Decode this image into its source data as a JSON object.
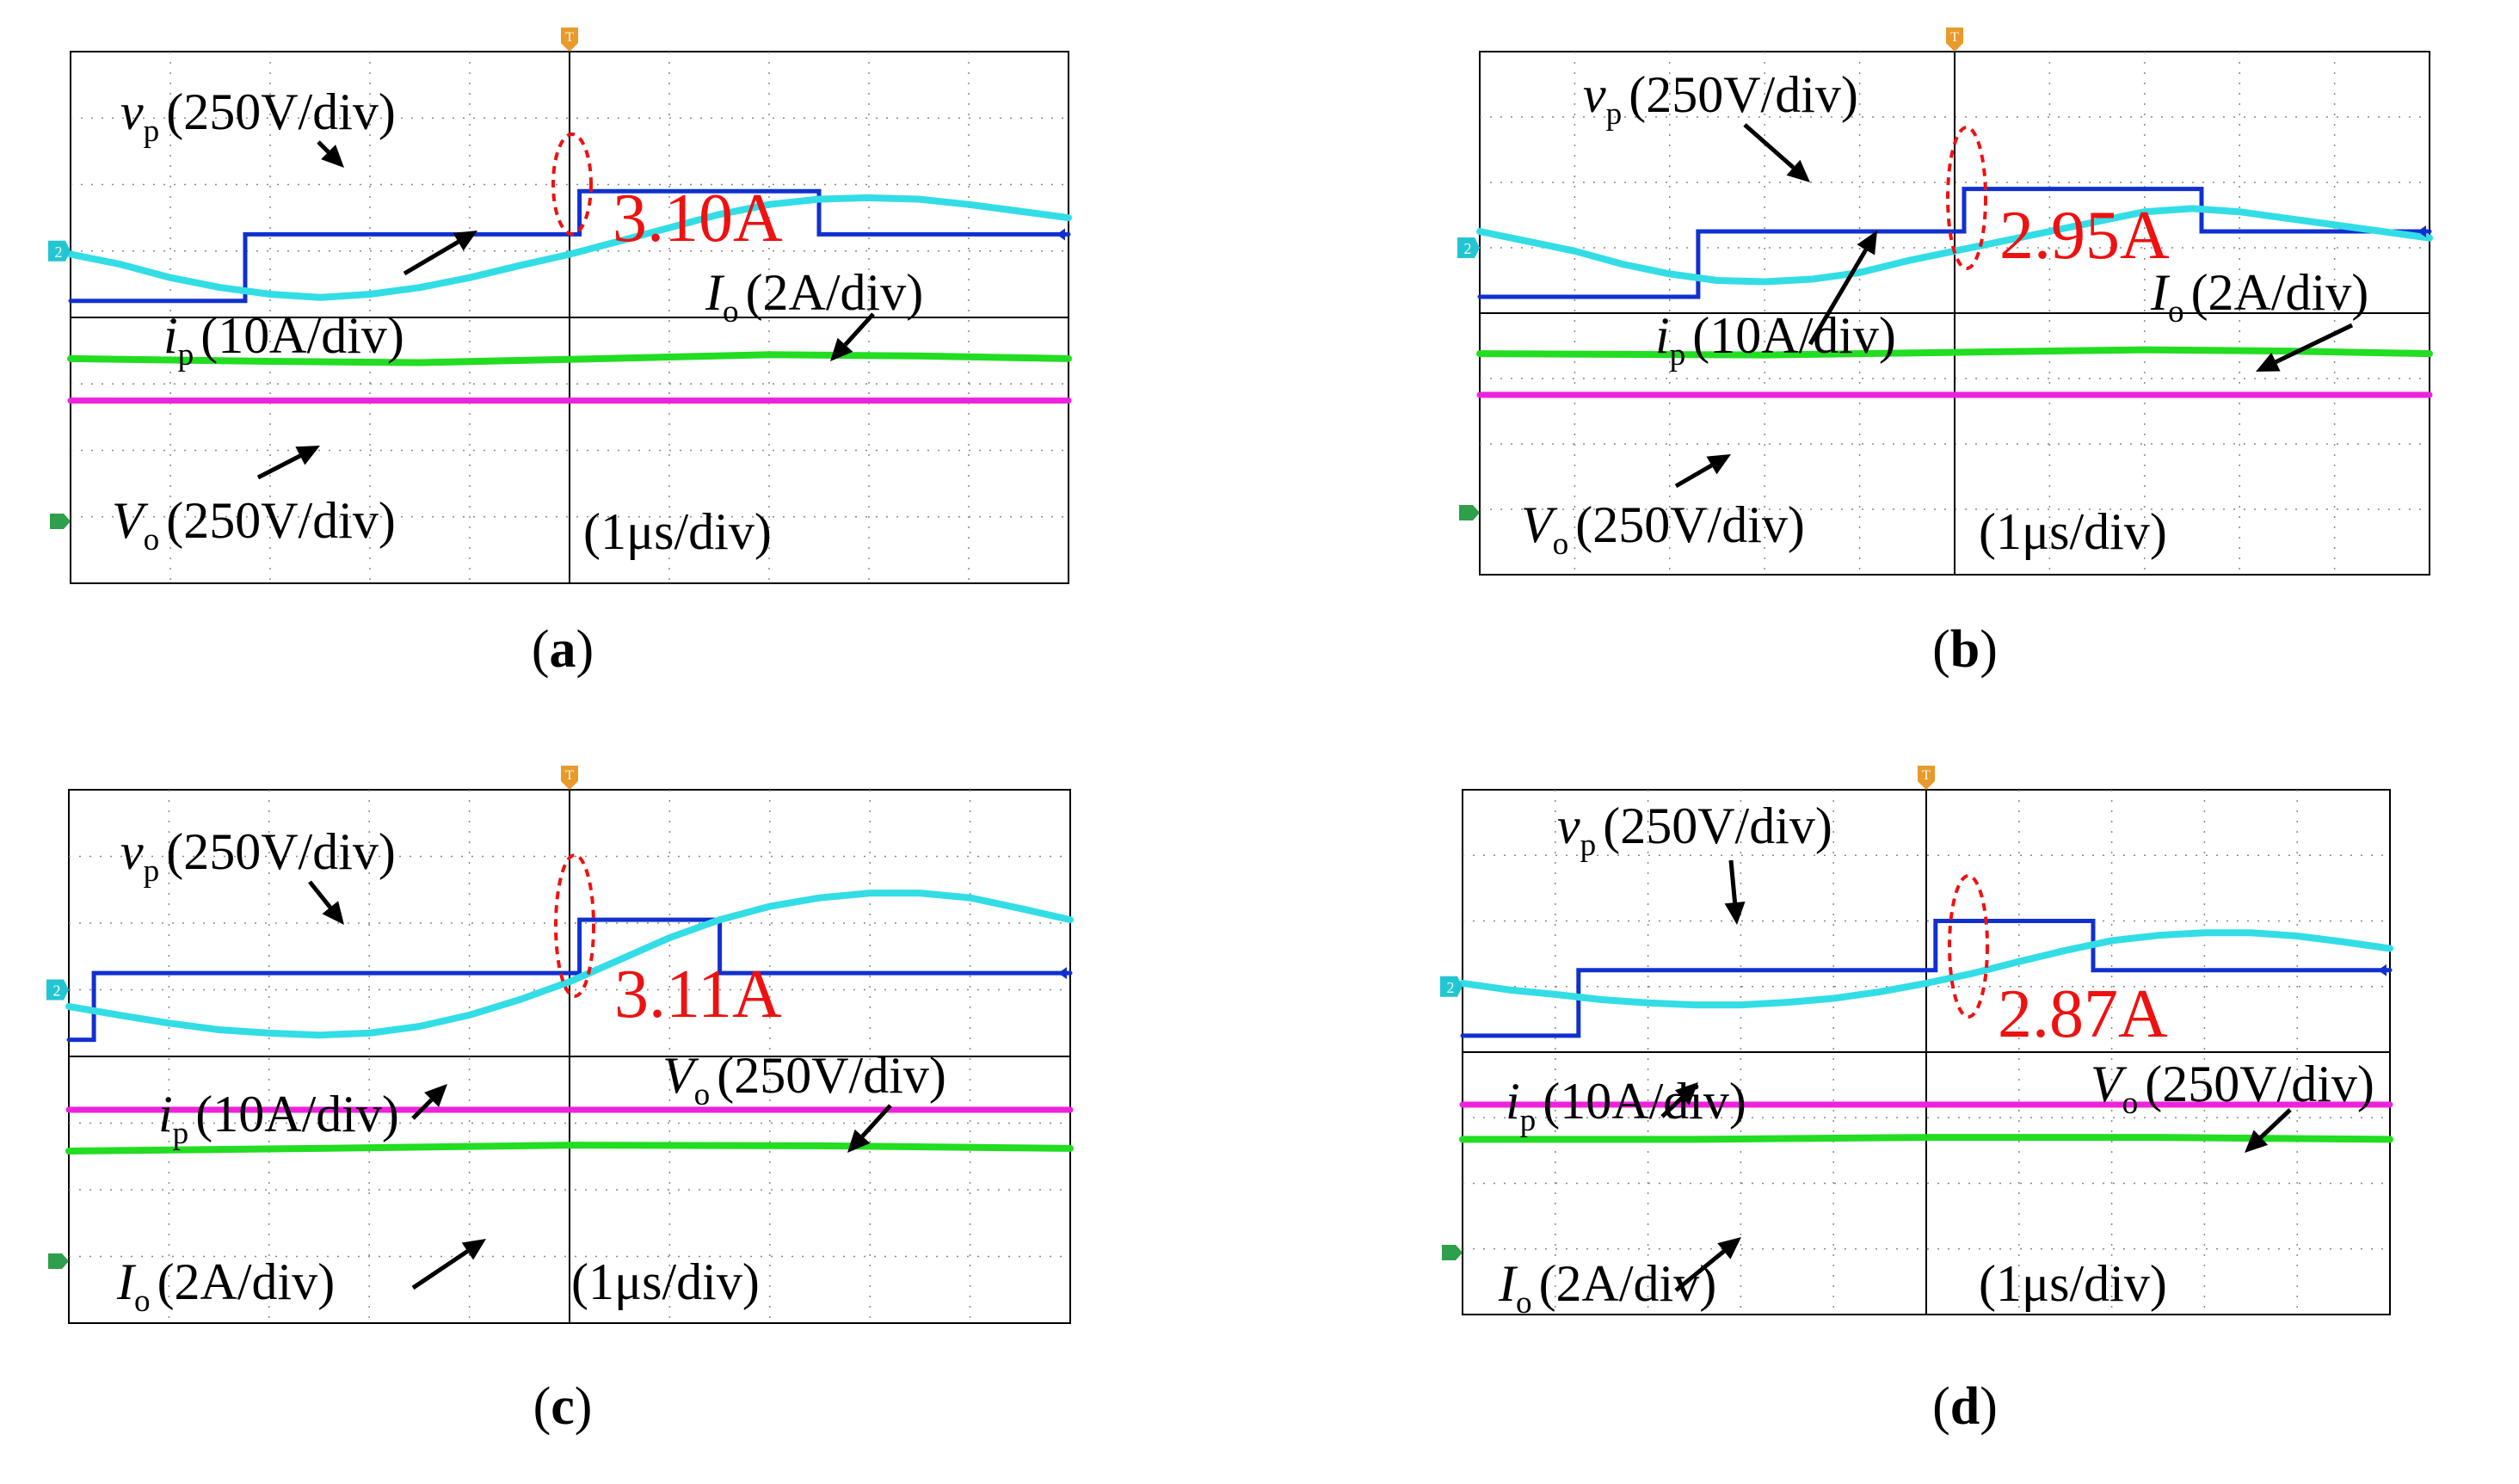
{
  "figure": {
    "panels": [
      {
        "caption_letter": "a",
        "label_vp_main": "v",
        "label_vp_sub": "p",
        "label_vp_scale": "(250V/div)",
        "label_ip_main": "i",
        "label_ip_sub": "p",
        "label_ip_scale": "(10A/div)",
        "label_io_main": "I",
        "label_io_sub": "o",
        "label_io_scale": "(2A/div)",
        "label_vo_main": "V",
        "label_vo_sub": "o",
        "label_vo_scale": "(250V/div)",
        "label_time": "(1μs/div)",
        "current_annotation": "3.10A",
        "ch2_marker": "2",
        "trigger_marker": "T"
      },
      {
        "caption_letter": "b",
        "label_vp_main": "v",
        "label_vp_sub": "p",
        "label_vp_scale": "(250V/div)",
        "label_ip_main": "i",
        "label_ip_sub": "p",
        "label_ip_scale": "(10A/div)",
        "label_io_main": "I",
        "label_io_sub": "o",
        "label_io_scale": "(2A/div)",
        "label_vo_main": "V",
        "label_vo_sub": "o",
        "label_vo_scale": "(250V/div)",
        "label_time": "(1μs/div)",
        "current_annotation": "2.95A",
        "ch2_marker": "2",
        "trigger_marker": "T"
      },
      {
        "caption_letter": "c",
        "label_vp_main": "v",
        "label_vp_sub": "p",
        "label_vp_scale": "(250V/div)",
        "label_ip_main": "i",
        "label_ip_sub": "p",
        "label_ip_scale": "(10A/div)",
        "label_io_main": "I",
        "label_io_sub": "o",
        "label_io_scale": "(2A/div)",
        "label_vo_main": "V",
        "label_vo_sub": "o",
        "label_vo_scale": "(250V/div)",
        "label_time": "(1μs/div)",
        "current_annotation": "3.11A",
        "ch2_marker": "2",
        "trigger_marker": "T"
      },
      {
        "caption_letter": "d",
        "label_vp_main": "v",
        "label_vp_sub": "p",
        "label_vp_scale": "(250V/div)",
        "label_ip_main": "i",
        "label_ip_sub": "p",
        "label_ip_scale": "(10A/div)",
        "label_io_main": "I",
        "label_io_sub": "o",
        "label_io_scale": "(2A/div)",
        "label_vo_main": "V",
        "label_vo_sub": "o",
        "label_vo_scale": "(250V/div)",
        "label_time": "(1μs/div)",
        "current_annotation": "2.87A",
        "ch2_marker": "2",
        "trigger_marker": "T"
      }
    ]
  },
  "colors": {
    "vp_trace": "#1030d0",
    "ip_trace": "#33dde6",
    "io_trace": "#22dd22",
    "vo_trace": "#ee22dd",
    "annotation": "#ee1111",
    "grid": "#000000",
    "trigger": "#e89a2a",
    "ch2_marker": "#22c6d2",
    "ground_marker": "#2e9f4a"
  },
  "chart_data": [
    {
      "type": "line",
      "panel": "a",
      "x_unit": "div",
      "xlim": [
        0,
        10
      ],
      "ylim": [
        -4,
        4
      ],
      "grid_divisions": {
        "x": 10,
        "y": 8
      },
      "trigger_x": 5,
      "annotated_ip_value_A": 3.1,
      "series": [
        {
          "name": "vp",
          "scale": "250V/div",
          "points": [
            [
              0,
              0.25
            ],
            [
              1.75,
              0.25
            ],
            [
              1.75,
              1.25
            ],
            [
              5.1,
              1.25
            ],
            [
              5.1,
              1.9
            ],
            [
              7.5,
              1.9
            ],
            [
              7.5,
              1.25
            ],
            [
              10,
              1.25
            ]
          ]
        },
        {
          "name": "ip",
          "scale": "10A/div",
          "points": [
            [
              0,
              0.95
            ],
            [
              0.5,
              0.8
            ],
            [
              1,
              0.6
            ],
            [
              1.5,
              0.45
            ],
            [
              2,
              0.35
            ],
            [
              2.5,
              0.3
            ],
            [
              3,
              0.35
            ],
            [
              3.5,
              0.45
            ],
            [
              4,
              0.6
            ],
            [
              4.5,
              0.78
            ],
            [
              5,
              0.95
            ],
            [
              5.5,
              1.15
            ],
            [
              6,
              1.35
            ],
            [
              6.5,
              1.55
            ],
            [
              7,
              1.7
            ],
            [
              7.5,
              1.78
            ],
            [
              8,
              1.8
            ],
            [
              8.5,
              1.78
            ],
            [
              9,
              1.7
            ],
            [
              9.5,
              1.6
            ],
            [
              10,
              1.5
            ]
          ]
        },
        {
          "name": "Io",
          "scale": "2A/div",
          "points": [
            [
              0,
              -0.62
            ],
            [
              2,
              -0.66
            ],
            [
              3.5,
              -0.68
            ],
            [
              5,
              -0.63
            ],
            [
              7,
              -0.56
            ],
            [
              8.5,
              -0.58
            ],
            [
              10,
              -0.62
            ]
          ]
        },
        {
          "name": "Vo",
          "scale": "250V/div",
          "points": [
            [
              0,
              -1.25
            ],
            [
              10,
              -1.25
            ]
          ]
        }
      ]
    },
    {
      "type": "line",
      "panel": "b",
      "x_unit": "div",
      "xlim": [
        0,
        10
      ],
      "ylim": [
        -4,
        4
      ],
      "grid_divisions": {
        "x": 10,
        "y": 8
      },
      "trigger_x": 5,
      "annotated_ip_value_A": 2.95,
      "series": [
        {
          "name": "vp",
          "scale": "250V/div",
          "points": [
            [
              0,
              0.25
            ],
            [
              2.3,
              0.25
            ],
            [
              2.3,
              1.25
            ],
            [
              5.1,
              1.25
            ],
            [
              5.1,
              1.9
            ],
            [
              7.6,
              1.9
            ],
            [
              7.6,
              1.25
            ],
            [
              10,
              1.25
            ]
          ]
        },
        {
          "name": "ip",
          "scale": "10A/div",
          "points": [
            [
              0,
              1.25
            ],
            [
              0.5,
              1.1
            ],
            [
              1,
              0.95
            ],
            [
              1.5,
              0.75
            ],
            [
              2,
              0.6
            ],
            [
              2.5,
              0.5
            ],
            [
              3,
              0.48
            ],
            [
              3.5,
              0.52
            ],
            [
              4,
              0.62
            ],
            [
              4.5,
              0.8
            ],
            [
              5,
              0.95
            ],
            [
              5.5,
              1.1
            ],
            [
              6,
              1.25
            ],
            [
              6.5,
              1.4
            ],
            [
              7,
              1.55
            ],
            [
              7.5,
              1.6
            ],
            [
              8,
              1.55
            ],
            [
              8.5,
              1.45
            ],
            [
              9,
              1.35
            ],
            [
              9.5,
              1.25
            ],
            [
              10,
              1.15
            ]
          ]
        },
        {
          "name": "Io",
          "scale": "2A/div",
          "points": [
            [
              0,
              -0.62
            ],
            [
              3,
              -0.64
            ],
            [
              5,
              -0.6
            ],
            [
              7,
              -0.56
            ],
            [
              8.5,
              -0.58
            ],
            [
              10,
              -0.62
            ]
          ]
        },
        {
          "name": "Vo",
          "scale": "250V/div",
          "points": [
            [
              0,
              -1.25
            ],
            [
              10,
              -1.25
            ]
          ]
        }
      ]
    },
    {
      "type": "line",
      "panel": "c",
      "x_unit": "div",
      "xlim": [
        0,
        10
      ],
      "ylim": [
        -4,
        4
      ],
      "grid_divisions": {
        "x": 10,
        "y": 8
      },
      "trigger_x": 5,
      "annotated_ip_value_A": 3.11,
      "series": [
        {
          "name": "vp",
          "scale": "250V/div",
          "points": [
            [
              0,
              0.25
            ],
            [
              0.25,
              0.25
            ],
            [
              0.25,
              1.25
            ],
            [
              5.1,
              1.25
            ],
            [
              5.1,
              2.05
            ],
            [
              6.5,
              2.05
            ],
            [
              6.5,
              1.25
            ],
            [
              10,
              1.25
            ]
          ]
        },
        {
          "name": "ip",
          "scale": "10A/div",
          "points": [
            [
              0,
              0.75
            ],
            [
              0.5,
              0.62
            ],
            [
              1,
              0.5
            ],
            [
              1.5,
              0.4
            ],
            [
              2,
              0.35
            ],
            [
              2.5,
              0.32
            ],
            [
              3,
              0.35
            ],
            [
              3.5,
              0.45
            ],
            [
              4,
              0.62
            ],
            [
              4.5,
              0.85
            ],
            [
              5,
              1.12
            ],
            [
              5.5,
              1.45
            ],
            [
              6,
              1.78
            ],
            [
              6.5,
              2.05
            ],
            [
              7,
              2.25
            ],
            [
              7.5,
              2.38
            ],
            [
              8,
              2.45
            ],
            [
              8.5,
              2.45
            ],
            [
              9,
              2.38
            ],
            [
              9.5,
              2.22
            ],
            [
              10,
              2.05
            ]
          ]
        },
        {
          "name": "Vo",
          "scale": "250V/div",
          "points": [
            [
              0,
              -0.8
            ],
            [
              10,
              -0.8
            ]
          ]
        },
        {
          "name": "Io",
          "scale": "2A/div",
          "points": [
            [
              0,
              -1.42
            ],
            [
              2.5,
              -1.38
            ],
            [
              5,
              -1.33
            ],
            [
              7.5,
              -1.34
            ],
            [
              10,
              -1.38
            ]
          ]
        }
      ]
    },
    {
      "type": "line",
      "panel": "d",
      "x_unit": "div",
      "xlim": [
        0,
        10
      ],
      "ylim": [
        -4,
        4
      ],
      "grid_divisions": {
        "x": 10,
        "y": 8
      },
      "trigger_x": 5,
      "annotated_ip_value_A": 2.87,
      "series": [
        {
          "name": "vp",
          "scale": "250V/div",
          "points": [
            [
              0,
              0.25
            ],
            [
              1.25,
              0.25
            ],
            [
              1.25,
              1.25
            ],
            [
              5.1,
              1.25
            ],
            [
              5.1,
              2.0
            ],
            [
              6.8,
              2.0
            ],
            [
              6.8,
              1.25
            ],
            [
              10,
              1.25
            ]
          ]
        },
        {
          "name": "ip",
          "scale": "10A/div",
          "points": [
            [
              0,
              1.05
            ],
            [
              0.5,
              0.95
            ],
            [
              1,
              0.88
            ],
            [
              1.5,
              0.8
            ],
            [
              2,
              0.75
            ],
            [
              2.5,
              0.72
            ],
            [
              3,
              0.72
            ],
            [
              3.5,
              0.76
            ],
            [
              4,
              0.82
            ],
            [
              4.5,
              0.92
            ],
            [
              5,
              1.05
            ],
            [
              5.5,
              1.2
            ],
            [
              6,
              1.38
            ],
            [
              6.5,
              1.55
            ],
            [
              7,
              1.7
            ],
            [
              7.5,
              1.78
            ],
            [
              8,
              1.82
            ],
            [
              8.5,
              1.82
            ],
            [
              9,
              1.77
            ],
            [
              9.5,
              1.68
            ],
            [
              10,
              1.58
            ]
          ]
        },
        {
          "name": "Vo",
          "scale": "250V/div",
          "points": [
            [
              0,
              -0.8
            ],
            [
              10,
              -0.8
            ]
          ]
        },
        {
          "name": "Io",
          "scale": "2A/div",
          "points": [
            [
              0,
              -1.33
            ],
            [
              2.5,
              -1.33
            ],
            [
              5,
              -1.3
            ],
            [
              7.5,
              -1.3
            ],
            [
              10,
              -1.33
            ]
          ]
        }
      ]
    }
  ]
}
